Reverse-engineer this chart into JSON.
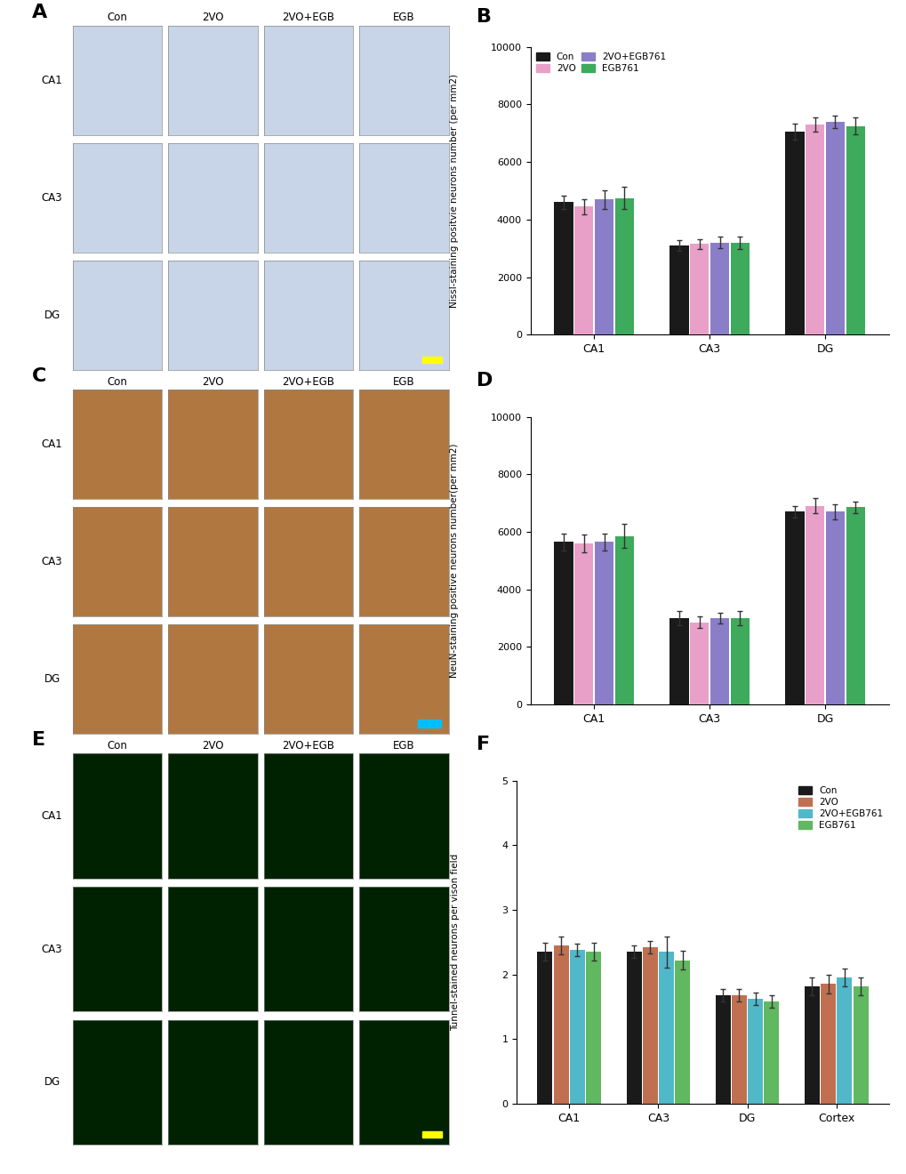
{
  "panel_B": {
    "categories": [
      "CA1",
      "CA3",
      "DG"
    ],
    "groups": [
      "Con",
      "2VO",
      "2VO+EGB761",
      "EGB761"
    ],
    "colors": [
      "#1a1a1a",
      "#E8A0C8",
      "#8B7EC8",
      "#3DAA5C"
    ],
    "values": [
      [
        4600,
        4450,
        4700,
        4750
      ],
      [
        3100,
        3150,
        3200,
        3200
      ],
      [
        7050,
        7300,
        7400,
        7250
      ]
    ],
    "errors": [
      [
        220,
        270,
        320,
        380
      ],
      [
        180,
        180,
        200,
        220
      ],
      [
        280,
        240,
        210,
        290
      ]
    ],
    "ylabel": "Nissl-staining positvie neurons number (per mm2)",
    "ylim": [
      0,
      10000
    ],
    "yticks": [
      0,
      2000,
      4000,
      6000,
      8000,
      10000
    ]
  },
  "panel_D": {
    "categories": [
      "CA1",
      "CA3",
      "DG"
    ],
    "groups": [
      "Con",
      "2VO",
      "2VO+EGB761",
      "EGB761"
    ],
    "colors": [
      "#1a1a1a",
      "#E8A0C8",
      "#8B7EC8",
      "#3DAA5C"
    ],
    "values": [
      [
        5650,
        5600,
        5650,
        5850
      ],
      [
        3000,
        2850,
        3000,
        3000
      ],
      [
        6700,
        6900,
        6700,
        6850
      ]
    ],
    "errors": [
      [
        300,
        300,
        290,
        420
      ],
      [
        250,
        200,
        200,
        260
      ],
      [
        200,
        260,
        260,
        200
      ]
    ],
    "ylabel": "NeuN-staining positive neurons number(per mm2)",
    "ylim": [
      0,
      10000
    ],
    "yticks": [
      0,
      2000,
      4000,
      6000,
      8000,
      10000
    ]
  },
  "panel_F": {
    "categories": [
      "CA1",
      "CA3",
      "DG",
      "Cortex"
    ],
    "groups": [
      "Con",
      "2VO",
      "2VO+EGB761",
      "EGB761"
    ],
    "colors": [
      "#1a1a1a",
      "#C07050",
      "#50B8C8",
      "#60B860"
    ],
    "values": [
      [
        2.35,
        2.45,
        2.38,
        2.35
      ],
      [
        2.35,
        2.42,
        2.35,
        2.22
      ],
      [
        1.68,
        1.68,
        1.62,
        1.58
      ],
      [
        1.82,
        1.85,
        1.95,
        1.82
      ]
    ],
    "errors": [
      [
        0.14,
        0.14,
        0.1,
        0.14
      ],
      [
        0.1,
        0.1,
        0.24,
        0.14
      ],
      [
        0.1,
        0.1,
        0.1,
        0.1
      ],
      [
        0.14,
        0.14,
        0.14,
        0.14
      ]
    ],
    "ylabel": "Tunnel-stained neurons per vison field",
    "ylim": [
      0,
      5
    ],
    "yticks": [
      0,
      1,
      2,
      3,
      4,
      5
    ]
  },
  "col_labels": [
    "Con",
    "2VO",
    "2VO+EGB",
    "EGB"
  ],
  "row_labels_AC": [
    "CA1",
    "CA3",
    "DG"
  ],
  "row_labels_E": [
    "CA1",
    "CA3",
    "DG"
  ],
  "bg_A": "#C8D5E8",
  "bg_C": "#B07840",
  "bg_E": "#002200",
  "white": "#ffffff"
}
